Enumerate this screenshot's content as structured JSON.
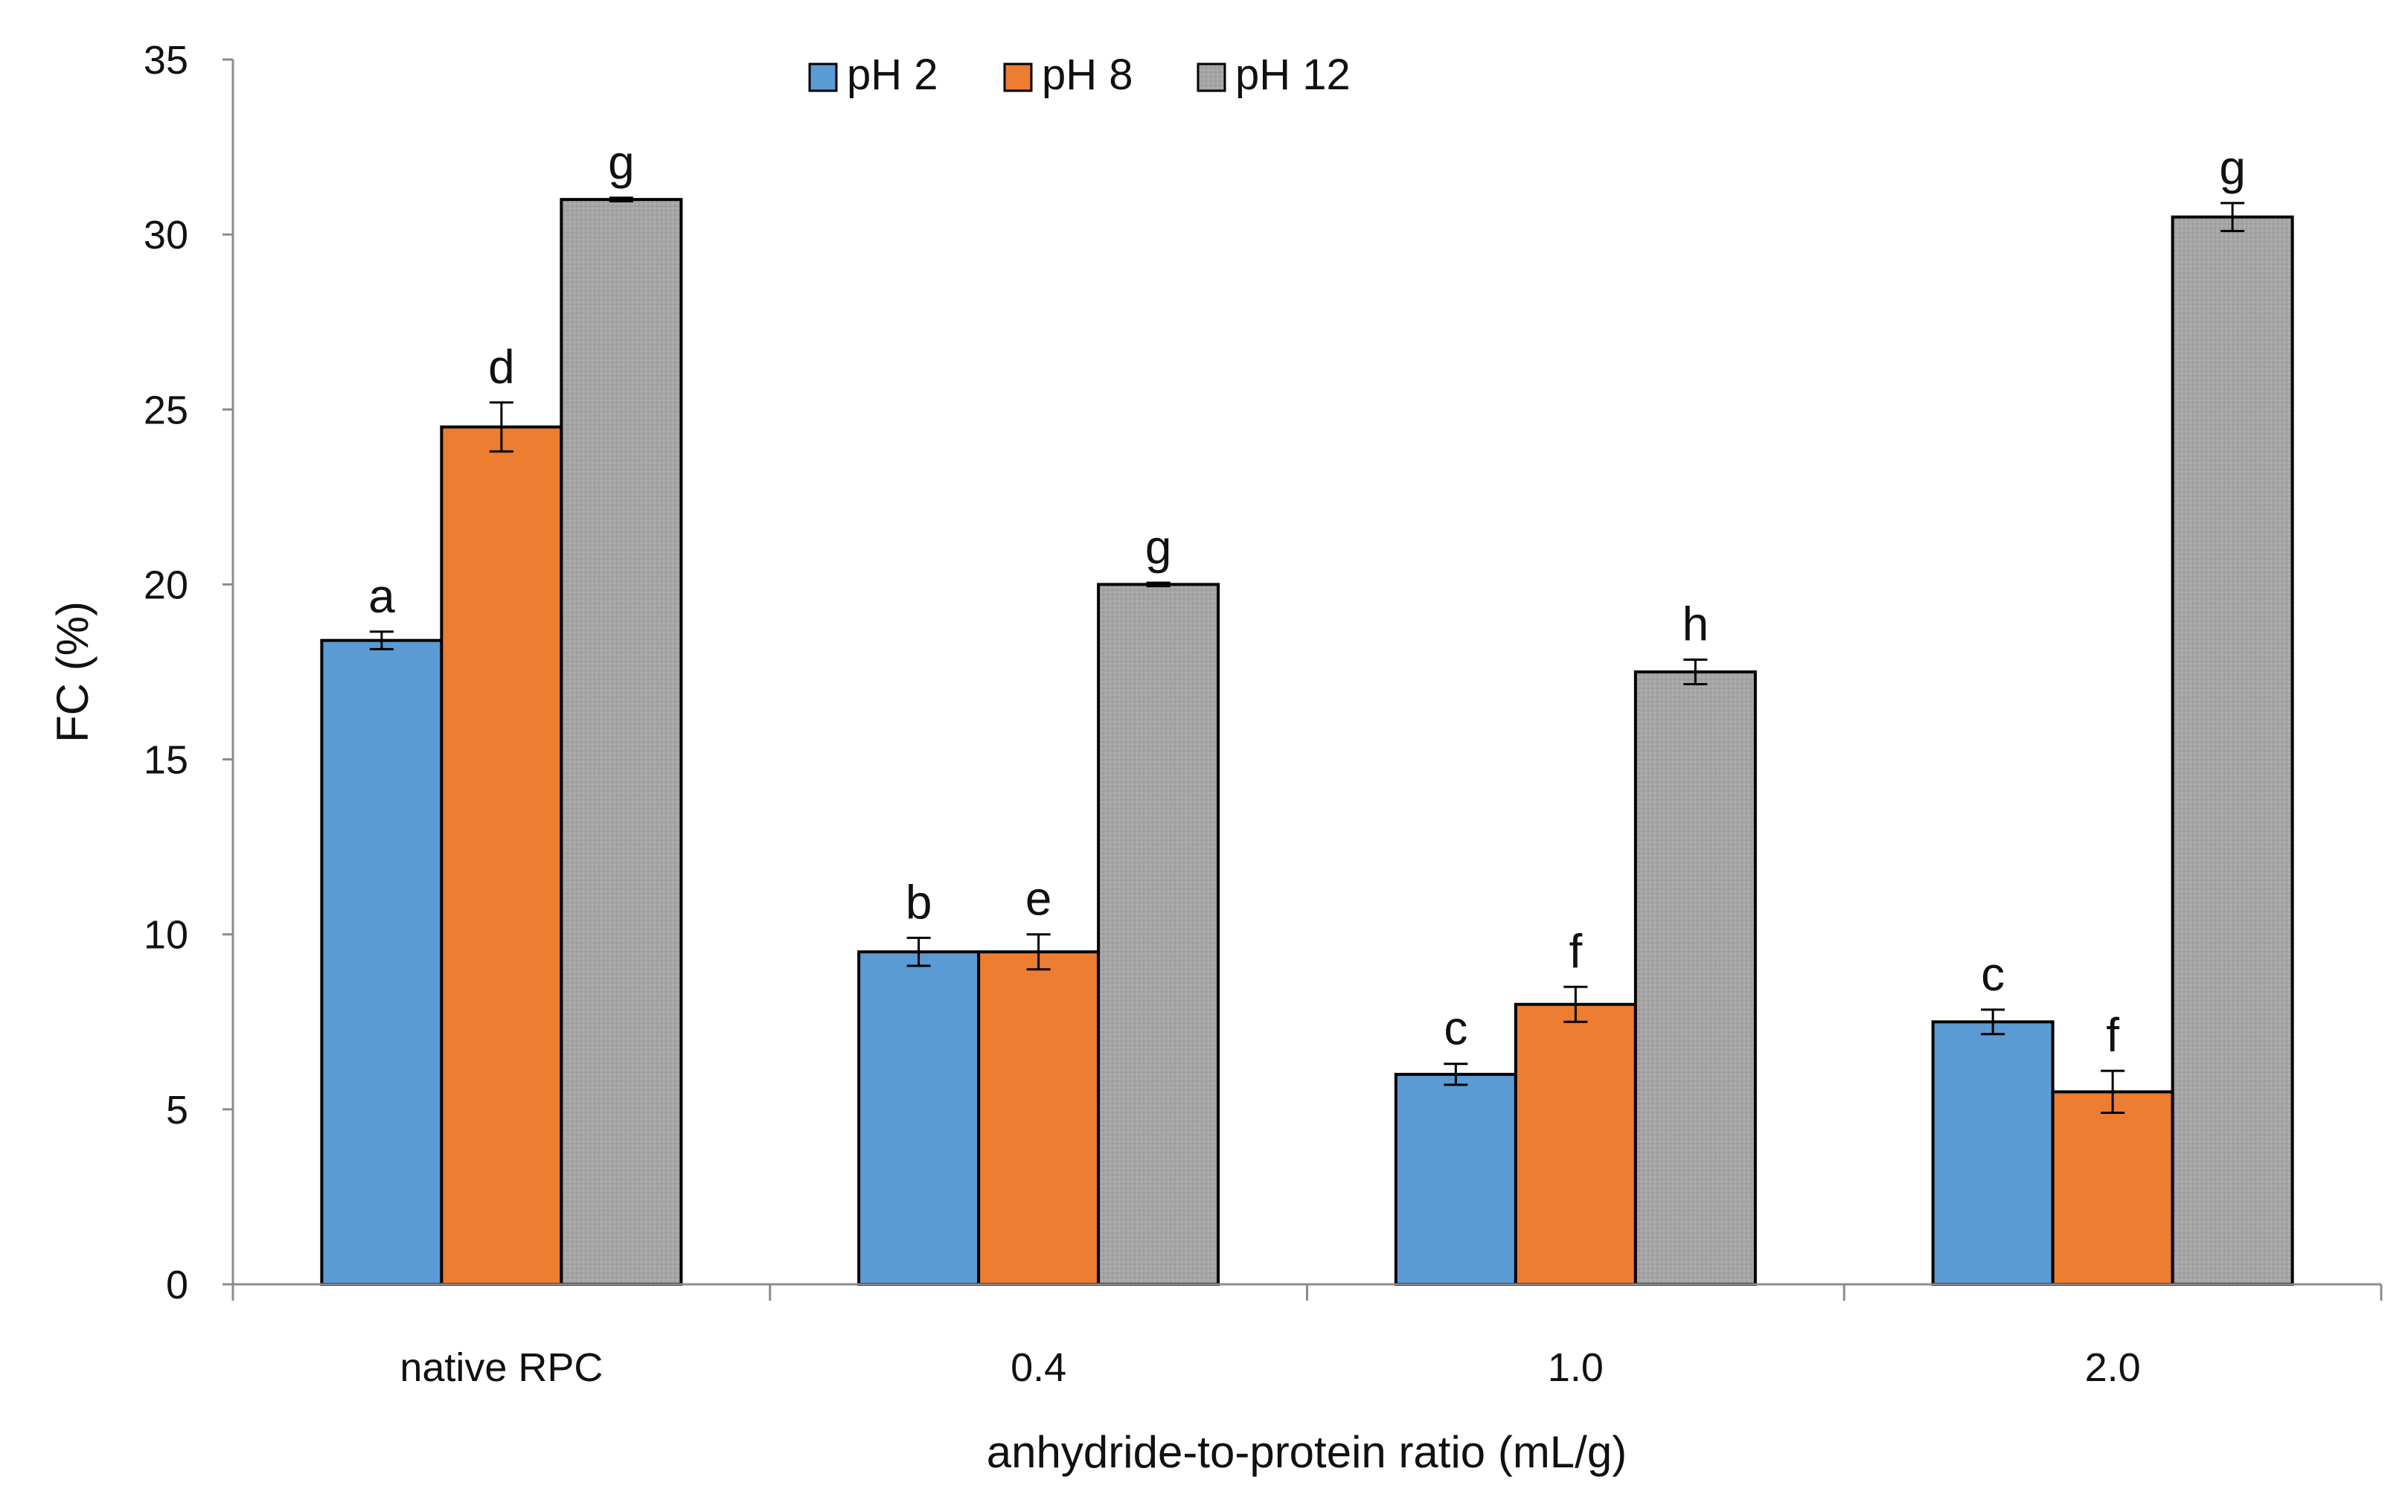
{
  "chart_data": {
    "type": "bar",
    "title": "",
    "xlabel": "anhydride-to-protein ratio (mL/g)",
    "ylabel": "FC (%)",
    "ylim": [
      0,
      35
    ],
    "yticks": [
      0,
      5,
      10,
      15,
      20,
      25,
      30,
      35
    ],
    "grid": false,
    "legend_position": "top-center",
    "categories": [
      "native RPC",
      "0.4",
      "1.0",
      "2.0"
    ],
    "series": [
      {
        "name": "pH 2",
        "color": "#5B9BD5",
        "values": [
          18.4,
          9.5,
          6.0,
          7.5
        ],
        "errors": [
          0.25,
          0.4,
          0.3,
          0.35
        ],
        "letters": [
          "a",
          "b",
          "c",
          "c"
        ]
      },
      {
        "name": "pH 8",
        "color": "#ED7D31",
        "values": [
          24.5,
          9.5,
          8.0,
          5.5
        ],
        "errors": [
          0.7,
          0.5,
          0.5,
          0.6
        ],
        "letters": [
          "d",
          "e",
          "f",
          "f"
        ]
      },
      {
        "name": "pH 12",
        "color": "#A5A5A5",
        "values": [
          31.0,
          20.0,
          17.5,
          30.5
        ],
        "errors": [
          0.05,
          0.05,
          0.35,
          0.4
        ],
        "letters": [
          "g",
          "g",
          "h",
          "g"
        ]
      }
    ]
  }
}
